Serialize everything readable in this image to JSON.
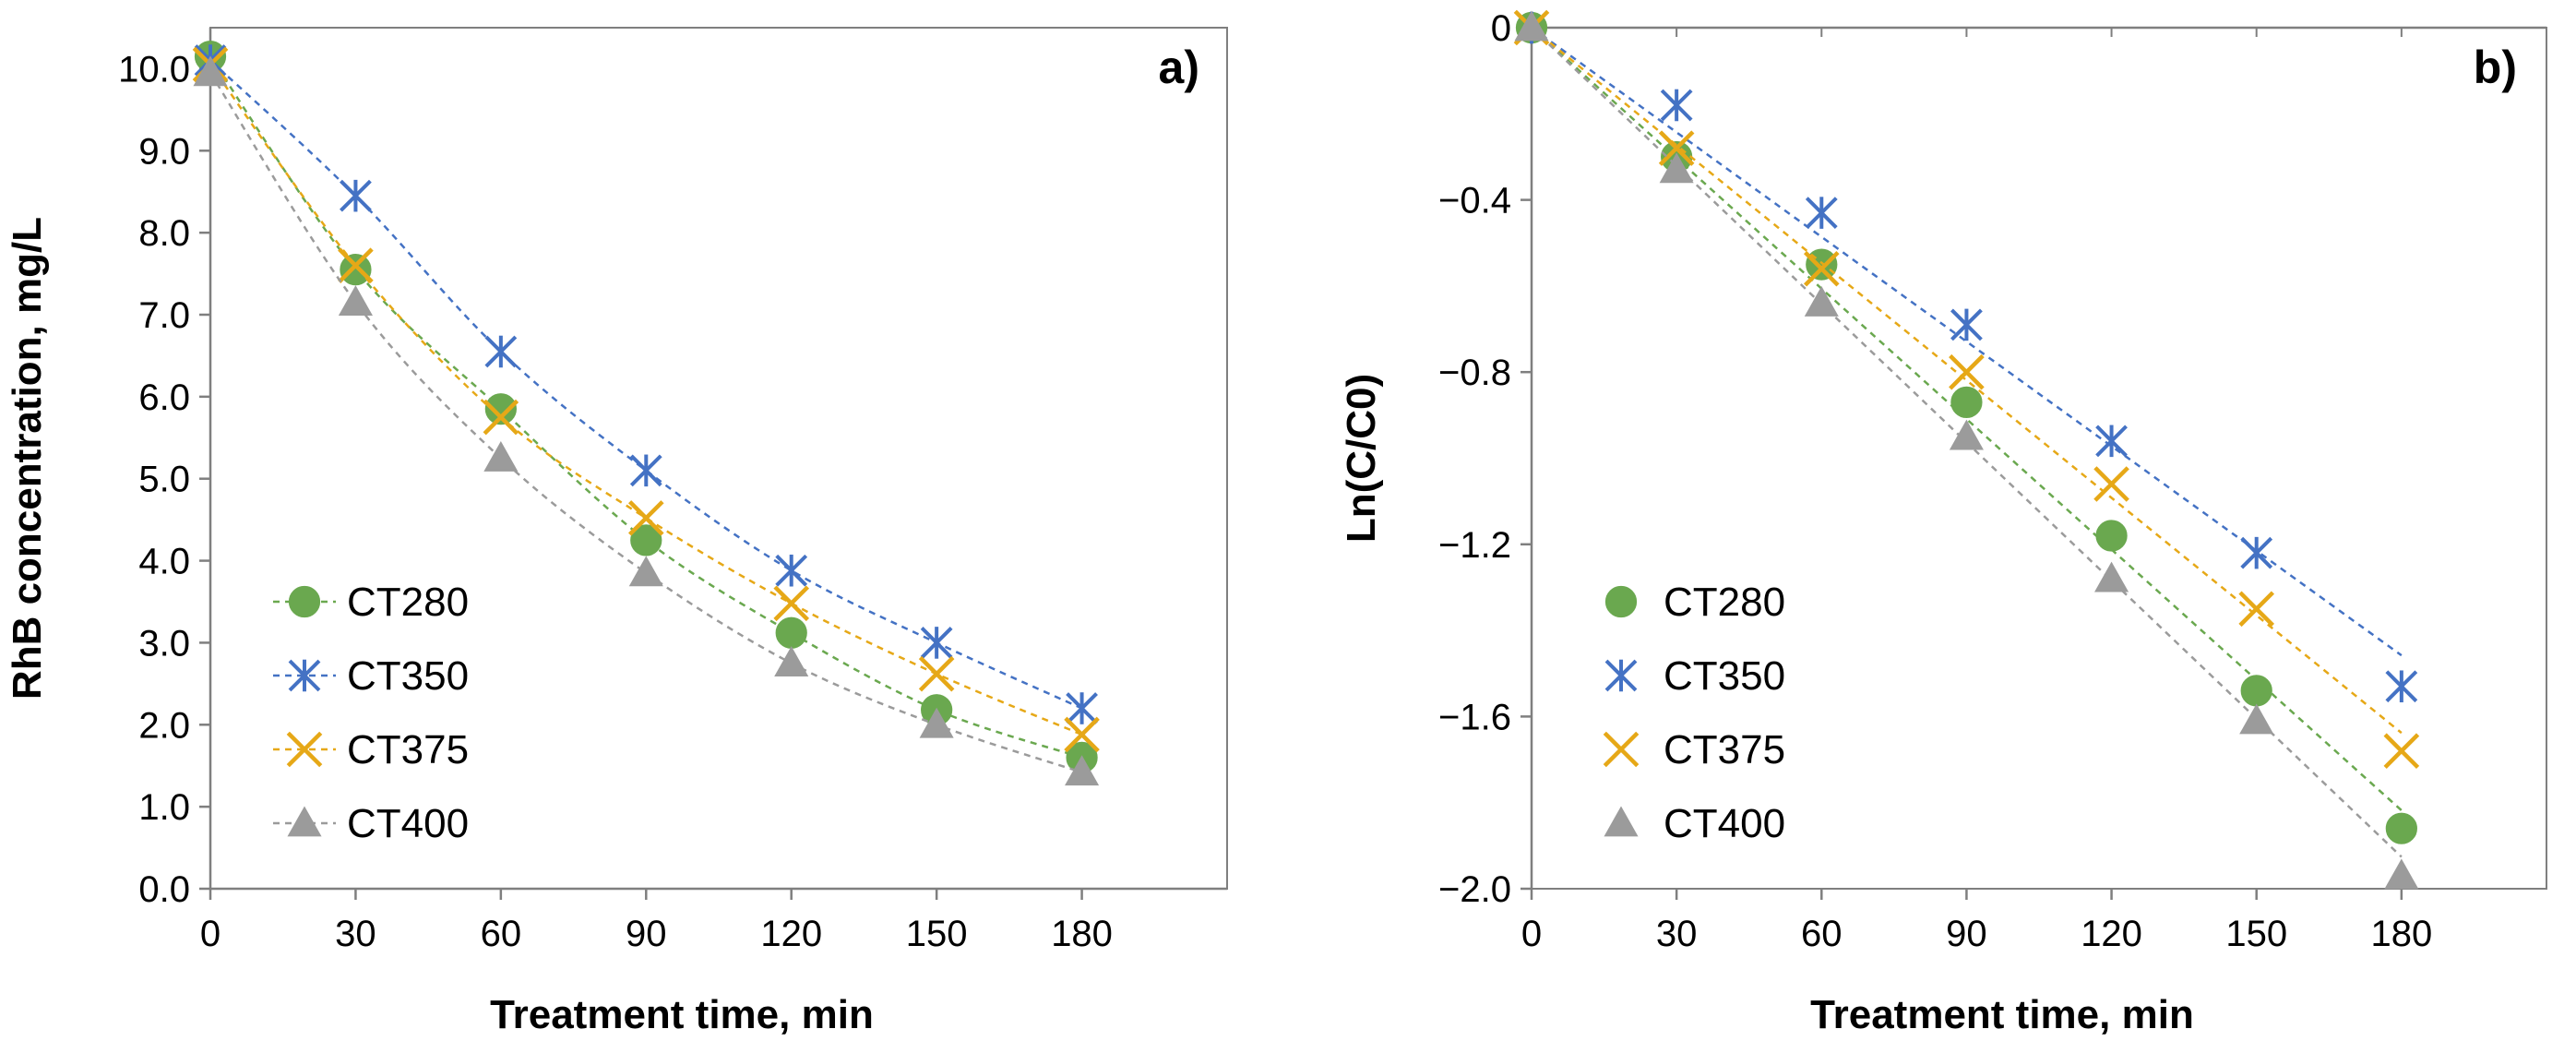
{
  "colors": {
    "CT280": "#6aa84f",
    "CT350": "#4472c4",
    "CT375": "#e6a817",
    "CT400": "#9b9b9b"
  },
  "chart_data": [
    {
      "type": "line",
      "panel_label": "a)",
      "title": "",
      "xlabel": "Treatment time, min",
      "ylabel": "RhB concentration, mg/L",
      "xlim": [
        0,
        210
      ],
      "ylim": [
        0,
        10.5
      ],
      "x_ticks": [
        0,
        30,
        60,
        90,
        120,
        150,
        180
      ],
      "x_tick_labels": [
        "0",
        "30",
        "60",
        "90",
        "120",
        "150",
        "180"
      ],
      "y_ticks": [
        0,
        1,
        2,
        3,
        4,
        5,
        6,
        7,
        8,
        9,
        10
      ],
      "y_tick_labels": [
        "0.0",
        "1.0",
        "2.0",
        "3.0",
        "4.0",
        "5.0",
        "6.0",
        "7.0",
        "8.0",
        "9.0",
        "10.0"
      ],
      "grid": false,
      "legend_position": "bottom-left",
      "x": [
        0,
        30,
        60,
        90,
        120,
        150,
        180
      ],
      "series": [
        {
          "name": "CT280",
          "marker": "circle",
          "values": [
            10.15,
            7.55,
            5.85,
            4.25,
            3.12,
            2.18,
            1.6
          ]
        },
        {
          "name": "CT350",
          "marker": "asterisk",
          "values": [
            10.1,
            8.45,
            6.55,
            5.1,
            3.88,
            3.0,
            2.2
          ]
        },
        {
          "name": "CT375",
          "marker": "x",
          "values": [
            10.05,
            7.6,
            5.75,
            4.52,
            3.48,
            2.62,
            1.88
          ]
        },
        {
          "name": "CT400",
          "marker": "triangle",
          "values": [
            9.95,
            7.15,
            5.25,
            3.85,
            2.75,
            2.0,
            1.42
          ]
        }
      ]
    },
    {
      "type": "line",
      "panel_label": "b)",
      "title": "",
      "xlabel": "Treatment time, min",
      "ylabel": "Ln(C/C0)",
      "xlim": [
        0,
        210
      ],
      "ylim": [
        -2.0,
        0
      ],
      "x_ticks": [
        0,
        30,
        60,
        90,
        120,
        150,
        180
      ],
      "x_tick_labels": [
        "0",
        "30",
        "60",
        "90",
        "120",
        "150",
        "180"
      ],
      "y_ticks": [
        0,
        -0.4,
        -0.8,
        -1.2,
        -1.6,
        -2.0
      ],
      "y_tick_labels": [
        "0",
        "−0.4",
        "−0.8",
        "−1.2",
        "−1.6",
        "−2.0"
      ],
      "grid": false,
      "legend_position": "bottom-left",
      "x": [
        0,
        30,
        60,
        90,
        120,
        150,
        180
      ],
      "series": [
        {
          "name": "CT280",
          "marker": "circle",
          "values": [
            0,
            -0.3,
            -0.55,
            -0.87,
            -1.18,
            -1.54,
            -1.86
          ],
          "trend_slope": -0.0101
        },
        {
          "name": "CT350",
          "marker": "asterisk",
          "values": [
            0,
            -0.18,
            -0.43,
            -0.69,
            -0.96,
            -1.22,
            -1.53
          ],
          "trend_slope": -0.0081
        },
        {
          "name": "CT375",
          "marker": "x",
          "values": [
            0,
            -0.28,
            -0.56,
            -0.8,
            -1.06,
            -1.35,
            -1.68
          ],
          "trend_slope": -0.0091
        },
        {
          "name": "CT400",
          "marker": "triangle",
          "values": [
            0,
            -0.33,
            -0.64,
            -0.95,
            -1.28,
            -1.61,
            -1.97
          ],
          "trend_slope": -0.0107
        }
      ]
    }
  ]
}
